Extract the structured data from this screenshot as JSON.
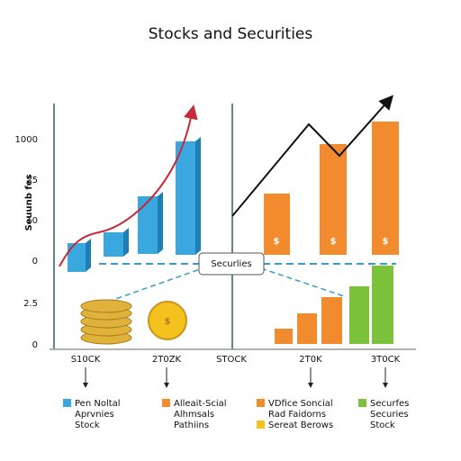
{
  "title": "Stocks and Securities",
  "y_axis_label": "Seuunb fes",
  "y_labels": [
    "1000",
    "25",
    "10",
    "0",
    "2.5",
    "0"
  ],
  "center_label": "Securlies",
  "x_labels": [
    "S10CK",
    "2T0ZK",
    "STOCK",
    "2T0K",
    "3T0CK"
  ],
  "bar_symbol": "$",
  "legend": [
    {
      "lines": [
        "Pen Noltal",
        "Aprvnies",
        "Stock"
      ]
    },
    {
      "lines": [
        "Alleait-Scial",
        "Alhmsals",
        "Pathiins"
      ]
    },
    {
      "lines": [
        "VDfice Soncial",
        "Rad Faidorns"
      ]
    },
    {
      "lines": [
        "Sereat Berows"
      ]
    },
    {
      "lines": [
        "Securfes",
        "Securies",
        "Stock"
      ]
    }
  ]
}
